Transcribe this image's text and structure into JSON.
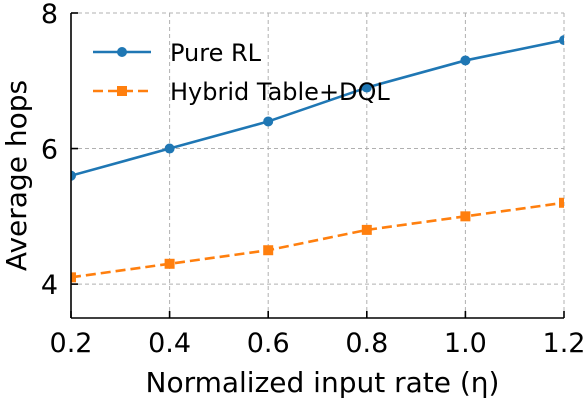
{
  "chart_data": {
    "type": "line",
    "xlabel": "Normalized input rate (η)",
    "ylabel": "Average hops",
    "xlim": [
      0.2,
      1.2
    ],
    "ylim": [
      3.5,
      8.0
    ],
    "xticks": [
      0.2,
      0.4,
      0.6,
      0.8,
      1.0,
      1.2
    ],
    "xtick_labels": [
      "0.2",
      "0.4",
      "0.6",
      "0.8",
      "1.0",
      "1.2"
    ],
    "yticks": [
      4,
      6,
      8
    ],
    "ytick_labels": [
      "4",
      "6",
      "8"
    ],
    "grid": true,
    "legend_position": "top-left",
    "series": [
      {
        "name": "Pure RL",
        "x": [
          0.2,
          0.4,
          0.6,
          0.8,
          1.0,
          1.2
        ],
        "y": [
          5.6,
          6.0,
          6.4,
          6.9,
          7.3,
          7.6
        ],
        "color": "#1f77b4",
        "line_style": "solid",
        "marker": "circle"
      },
      {
        "name": "Hybrid Table+DQL",
        "x": [
          0.2,
          0.4,
          0.6,
          0.8,
          1.0,
          1.2
        ],
        "y": [
          4.1,
          4.3,
          4.5,
          4.8,
          5.0,
          5.2
        ],
        "color": "#ff7f0e",
        "line_style": "dashed",
        "marker": "square"
      }
    ]
  }
}
